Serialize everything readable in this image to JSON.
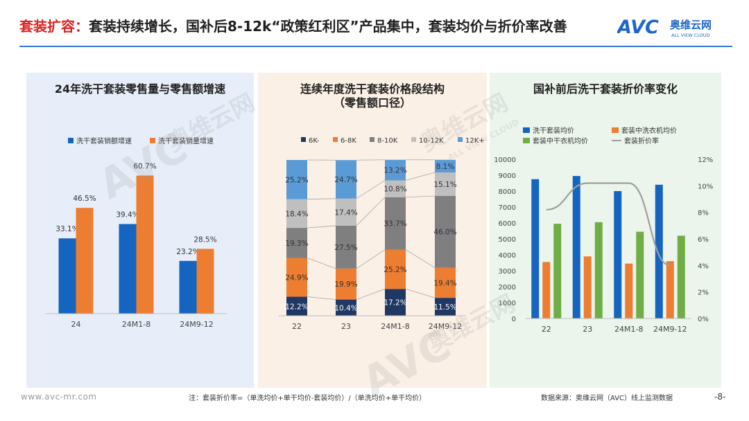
{
  "header": {
    "title_highlight": "套装扩容：",
    "title_rest": "套装持续增长，国补后8-12k“政策红利区”产品集中，套装均价与折价率改善",
    "logo_brand": "奥维云网",
    "logo_sub": "ALL VIEW CLOUD",
    "logo_mark": "AVC"
  },
  "colors": {
    "blue": "#1565c0",
    "orange": "#ed7d31",
    "green": "#70ad47",
    "gray": "#9e9e9e",
    "navy": "#1f3864",
    "mid_gray": "#7f7f7f",
    "light_gray": "#bfbfbf",
    "light_blue": "#5b9bd5",
    "rule": "#2e75d6",
    "title_red": "#e02020"
  },
  "watermark": {
    "brand": "奥维云网",
    "sub": "ALL VIEW CLOUD",
    "mark": "AVC"
  },
  "footer": {
    "website": "www.avc-mr.com",
    "note": "注：套装折价率=（单洗均价+单干均价-套装均价）/（单洗均价+单干均价）",
    "source": "数据来源：奥维云网（AVC）线上监测数据",
    "page": "-8-"
  },
  "chart_data": [
    {
      "type": "bar",
      "title": "24年洗干套装零售量与零售额增速",
      "categories": [
        "24",
        "24M1-8",
        "24M9-12"
      ],
      "series": [
        {
          "name": "洗干套装销额增速",
          "values": [
            33.1,
            39.4,
            23.2
          ],
          "labels": [
            "33.1%",
            "39.4%",
            "23.2%"
          ],
          "color": "#1565c0"
        },
        {
          "name": "洗干套装销量增速",
          "values": [
            46.5,
            60.7,
            28.5
          ],
          "labels": [
            "46.5%",
            "60.7%",
            "28.5%"
          ],
          "color": "#ed7d31"
        }
      ],
      "ylim": [
        0,
        70
      ],
      "grid": false,
      "legend": "top"
    },
    {
      "type": "bar",
      "stacked": true,
      "title": "连续年度洗干套装价格段结构",
      "subtitle": "（零售额口径）",
      "categories": [
        "22",
        "23",
        "24M1-8",
        "24M9-12"
      ],
      "series": [
        {
          "name": "6K-",
          "values": [
            12.2,
            10.4,
            17.2,
            11.5
          ],
          "labels": [
            "12.2%",
            "10.4%",
            "17.2%",
            "11.5%"
          ],
          "color": "#1f3864"
        },
        {
          "name": "6-8K",
          "values": [
            24.9,
            19.9,
            25.2,
            19.4
          ],
          "labels": [
            "24.9%",
            "19.9%",
            "25.2%",
            "19.4%"
          ],
          "color": "#ed7d31"
        },
        {
          "name": "8-10K",
          "values": [
            19.3,
            27.5,
            33.7,
            46.0
          ],
          "labels": [
            "19.3%",
            "27.5%",
            "33.7%",
            "46.0%"
          ],
          "color": "#7f7f7f"
        },
        {
          "name": "10-12K",
          "values": [
            18.4,
            17.4,
            10.8,
            15.1
          ],
          "labels": [
            "18.4%",
            "17.4%",
            "10.8%",
            "15.1%"
          ],
          "color": "#bfbfbf"
        },
        {
          "name": "12K+",
          "values": [
            25.2,
            24.7,
            13.2,
            8.1
          ],
          "labels": [
            "25.2%",
            "24.7%",
            "13.2%",
            "8.1%"
          ],
          "color": "#5b9bd5"
        }
      ],
      "ylim": [
        0,
        100
      ],
      "legend": "top"
    },
    {
      "type": "bar",
      "title": "国补前后洗干套装折价率变化",
      "categories": [
        "22",
        "23",
        "24M1-8",
        "24M9-12"
      ],
      "series": [
        {
          "name": "洗干套装均价",
          "values": [
            8750,
            8950,
            8000,
            8400
          ],
          "color": "#1565c0"
        },
        {
          "name": "套装中洗衣机均价",
          "values": [
            3550,
            3900,
            3450,
            3600
          ],
          "color": "#ed7d31"
        },
        {
          "name": "套装中干衣机均价",
          "values": [
            5950,
            6050,
            5450,
            5200
          ],
          "color": "#70ad47"
        },
        {
          "name": "套装折价率",
          "type": "line",
          "axis": "right",
          "values": [
            8.2,
            10.2,
            10.2,
            4.0
          ],
          "color": "#9e9e9e"
        }
      ],
      "ylim": [
        0,
        10000
      ],
      "yticks": [
        0,
        1000,
        2000,
        3000,
        4000,
        5000,
        6000,
        7000,
        8000,
        9000,
        10000
      ],
      "y2lim": [
        0,
        12
      ],
      "y2ticks": [
        "0%",
        "2%",
        "4%",
        "6%",
        "8%",
        "10%",
        "12%"
      ],
      "legend": "top"
    }
  ]
}
